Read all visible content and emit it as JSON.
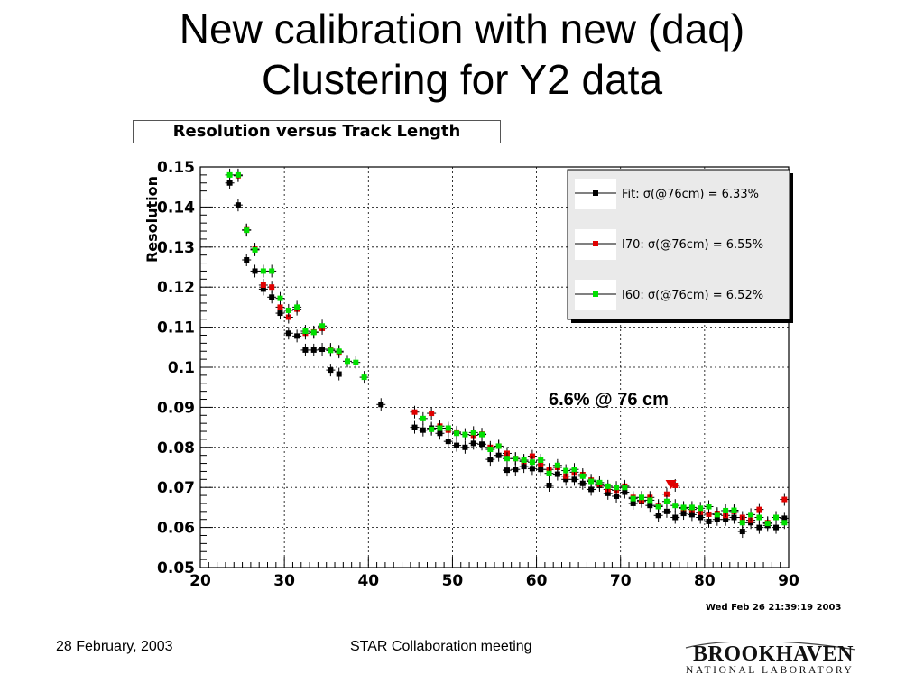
{
  "slide": {
    "title_line1": "New calibration with new (daq)",
    "title_line2": "Clustering for Y2 data"
  },
  "footer": {
    "date": "28 February, 2003",
    "meeting": "STAR Collaboration  meeting",
    "logo_main": "BROOKHAVEN",
    "logo_sub": "NATIONAL LABORATORY"
  },
  "timestamp": "Wed Feb 26 21:39:19 2003",
  "chart_data": {
    "type": "scatter",
    "title": "Resolution versus Track Length",
    "xlabel": "",
    "ylabel": "Resolution",
    "xlim": [
      20,
      90
    ],
    "ylim": [
      0.05,
      0.15
    ],
    "x_ticks": [
      "20",
      "30",
      "40",
      "50",
      "60",
      "70",
      "80",
      "90"
    ],
    "y_ticks": [
      "0.05",
      "0.06",
      "0.07",
      "0.08",
      "0.09",
      "0.1",
      "0.11",
      "0.12",
      "0.13",
      "0.14",
      "0.15"
    ],
    "grid": true,
    "legend_position": "top-right",
    "annotation": "6.6% @ 76 cm",
    "series": [
      {
        "name": "Fit:  σ(@76cm) =  6.33%",
        "color": "#000000",
        "points": [
          [
            23.5,
            0.146
          ],
          [
            24.5,
            0.1405
          ],
          [
            25.5,
            0.1268
          ],
          [
            26.5,
            0.124
          ],
          [
            27.5,
            0.1195
          ],
          [
            28.5,
            0.1175
          ],
          [
            29.5,
            0.1135
          ],
          [
            30.5,
            0.1085
          ],
          [
            31.5,
            0.1078
          ],
          [
            32.5,
            0.1043
          ],
          [
            33.5,
            0.1043
          ],
          [
            34.5,
            0.1045
          ],
          [
            35.5,
            0.0993
          ],
          [
            36.5,
            0.0983
          ],
          [
            41.5,
            0.0907
          ],
          [
            45.5,
            0.085
          ],
          [
            46.5,
            0.0843
          ],
          [
            47.5,
            0.0848
          ],
          [
            48.5,
            0.0835
          ],
          [
            49.5,
            0.0815
          ],
          [
            50.5,
            0.0805
          ],
          [
            51.5,
            0.08
          ],
          [
            52.5,
            0.081
          ],
          [
            53.5,
            0.0808
          ],
          [
            54.5,
            0.077
          ],
          [
            55.5,
            0.078
          ],
          [
            56.5,
            0.0743
          ],
          [
            57.5,
            0.0745
          ],
          [
            58.5,
            0.0752
          ],
          [
            59.5,
            0.0747
          ],
          [
            60.5,
            0.0745
          ],
          [
            61.5,
            0.0705
          ],
          [
            62.5,
            0.0733
          ],
          [
            63.5,
            0.072
          ],
          [
            64.5,
            0.072
          ],
          [
            65.5,
            0.071
          ],
          [
            66.5,
            0.0695
          ],
          [
            67.5,
            0.0705
          ],
          [
            68.5,
            0.0685
          ],
          [
            69.5,
            0.0678
          ],
          [
            70.5,
            0.0688
          ],
          [
            71.5,
            0.066
          ],
          [
            72.5,
            0.0665
          ],
          [
            73.5,
            0.0655
          ],
          [
            74.5,
            0.063
          ],
          [
            75.5,
            0.064
          ],
          [
            76.5,
            0.0625
          ],
          [
            77.5,
            0.0635
          ],
          [
            78.5,
            0.0632
          ],
          [
            79.5,
            0.0625
          ],
          [
            80.5,
            0.0615
          ],
          [
            81.5,
            0.062
          ],
          [
            82.5,
            0.062
          ],
          [
            83.5,
            0.0625
          ],
          [
            84.5,
            0.059
          ],
          [
            85.5,
            0.0612
          ],
          [
            86.5,
            0.06
          ],
          [
            87.5,
            0.0605
          ],
          [
            88.5,
            0.06
          ],
          [
            89.5,
            0.0623
          ]
        ]
      },
      {
        "name": "I70:  σ(@76cm) =  6.55%",
        "color": "#e00000",
        "points": [
          [
            24.5,
            0.1478
          ],
          [
            25.5,
            0.1343
          ],
          [
            26.5,
            0.1295
          ],
          [
            27.5,
            0.1205
          ],
          [
            28.5,
            0.12
          ],
          [
            29.5,
            0.115
          ],
          [
            30.5,
            0.1125
          ],
          [
            31.5,
            0.1145
          ],
          [
            32.5,
            0.1085
          ],
          [
            33.5,
            0.1088
          ],
          [
            34.5,
            0.1097
          ],
          [
            35.5,
            0.1045
          ],
          [
            36.5,
            0.1038
          ],
          [
            45.5,
            0.0888
          ],
          [
            47.5,
            0.0885
          ],
          [
            48.5,
            0.0853
          ],
          [
            49.5,
            0.0843
          ],
          [
            50.5,
            0.0838
          ],
          [
            52.5,
            0.083
          ],
          [
            53.5,
            0.0833
          ],
          [
            54.5,
            0.08
          ],
          [
            55.5,
            0.0803
          ],
          [
            56.5,
            0.0785
          ],
          [
            57.5,
            0.0772
          ],
          [
            58.5,
            0.0765
          ],
          [
            59.5,
            0.0778
          ],
          [
            60.5,
            0.0757
          ],
          [
            61.5,
            0.0745
          ],
          [
            62.5,
            0.075
          ],
          [
            63.5,
            0.0728
          ],
          [
            64.5,
            0.0738
          ],
          [
            65.5,
            0.0732
          ],
          [
            66.5,
            0.0718
          ],
          [
            67.5,
            0.0708
          ],
          [
            68.5,
            0.0695
          ],
          [
            69.5,
            0.0693
          ],
          [
            70.5,
            0.0703
          ],
          [
            71.5,
            0.0675
          ],
          [
            72.5,
            0.0668
          ],
          [
            73.5,
            0.0675
          ],
          [
            74.5,
            0.0655
          ],
          [
            75.5,
            0.0683
          ],
          [
            76.5,
            0.0705
          ],
          [
            77.5,
            0.0648
          ],
          [
            78.5,
            0.0645
          ],
          [
            79.5,
            0.0638
          ],
          [
            80.5,
            0.0633
          ],
          [
            81.5,
            0.0635
          ],
          [
            82.5,
            0.063
          ],
          [
            83.5,
            0.064
          ],
          [
            84.5,
            0.0625
          ],
          [
            85.5,
            0.0618
          ],
          [
            86.5,
            0.0645
          ],
          [
            87.5,
            0.0612
          ],
          [
            88.5,
            0.0625
          ],
          [
            89.5,
            0.067
          ]
        ]
      },
      {
        "name": "I60:  σ(@76cm) =  6.52%",
        "color": "#00e000",
        "points": [
          [
            23.5,
            0.148
          ],
          [
            24.5,
            0.148
          ],
          [
            25.5,
            0.1342
          ],
          [
            26.5,
            0.1293
          ],
          [
            27.5,
            0.124
          ],
          [
            28.5,
            0.124
          ],
          [
            29.5,
            0.1172
          ],
          [
            30.5,
            0.1142
          ],
          [
            31.5,
            0.115
          ],
          [
            32.5,
            0.109
          ],
          [
            33.5,
            0.1087
          ],
          [
            34.5,
            0.1103
          ],
          [
            35.5,
            0.1042
          ],
          [
            36.5,
            0.104
          ],
          [
            37.5,
            0.1015
          ],
          [
            38.5,
            0.1012
          ],
          [
            39.5,
            0.0975
          ],
          [
            46.5,
            0.0872
          ],
          [
            47.5,
            0.0845
          ],
          [
            48.5,
            0.0848
          ],
          [
            49.5,
            0.0848
          ],
          [
            50.5,
            0.0835
          ],
          [
            51.5,
            0.0832
          ],
          [
            52.5,
            0.0837
          ],
          [
            53.5,
            0.0832
          ],
          [
            54.5,
            0.0795
          ],
          [
            55.5,
            0.0803
          ],
          [
            56.5,
            0.0772
          ],
          [
            57.5,
            0.0772
          ],
          [
            58.5,
            0.0768
          ],
          [
            59.5,
            0.0763
          ],
          [
            60.5,
            0.0768
          ],
          [
            61.5,
            0.0735
          ],
          [
            62.5,
            0.0755
          ],
          [
            63.5,
            0.0742
          ],
          [
            64.5,
            0.0745
          ],
          [
            65.5,
            0.0728
          ],
          [
            66.5,
            0.0715
          ],
          [
            67.5,
            0.0712
          ],
          [
            68.5,
            0.0703
          ],
          [
            69.5,
            0.07
          ],
          [
            70.5,
            0.07
          ],
          [
            71.5,
            0.0672
          ],
          [
            72.5,
            0.0675
          ],
          [
            73.5,
            0.0668
          ],
          [
            74.5,
            0.0652
          ],
          [
            75.5,
            0.0665
          ],
          [
            76.5,
            0.0655
          ],
          [
            77.5,
            0.065
          ],
          [
            78.5,
            0.065
          ],
          [
            79.5,
            0.0648
          ],
          [
            80.5,
            0.0652
          ],
          [
            81.5,
            0.0632
          ],
          [
            82.5,
            0.0642
          ],
          [
            83.5,
            0.0643
          ],
          [
            84.5,
            0.0612
          ],
          [
            85.5,
            0.0632
          ],
          [
            86.5,
            0.0625
          ],
          [
            87.5,
            0.061
          ],
          [
            88.5,
            0.0625
          ],
          [
            89.5,
            0.0612
          ]
        ]
      }
    ]
  }
}
